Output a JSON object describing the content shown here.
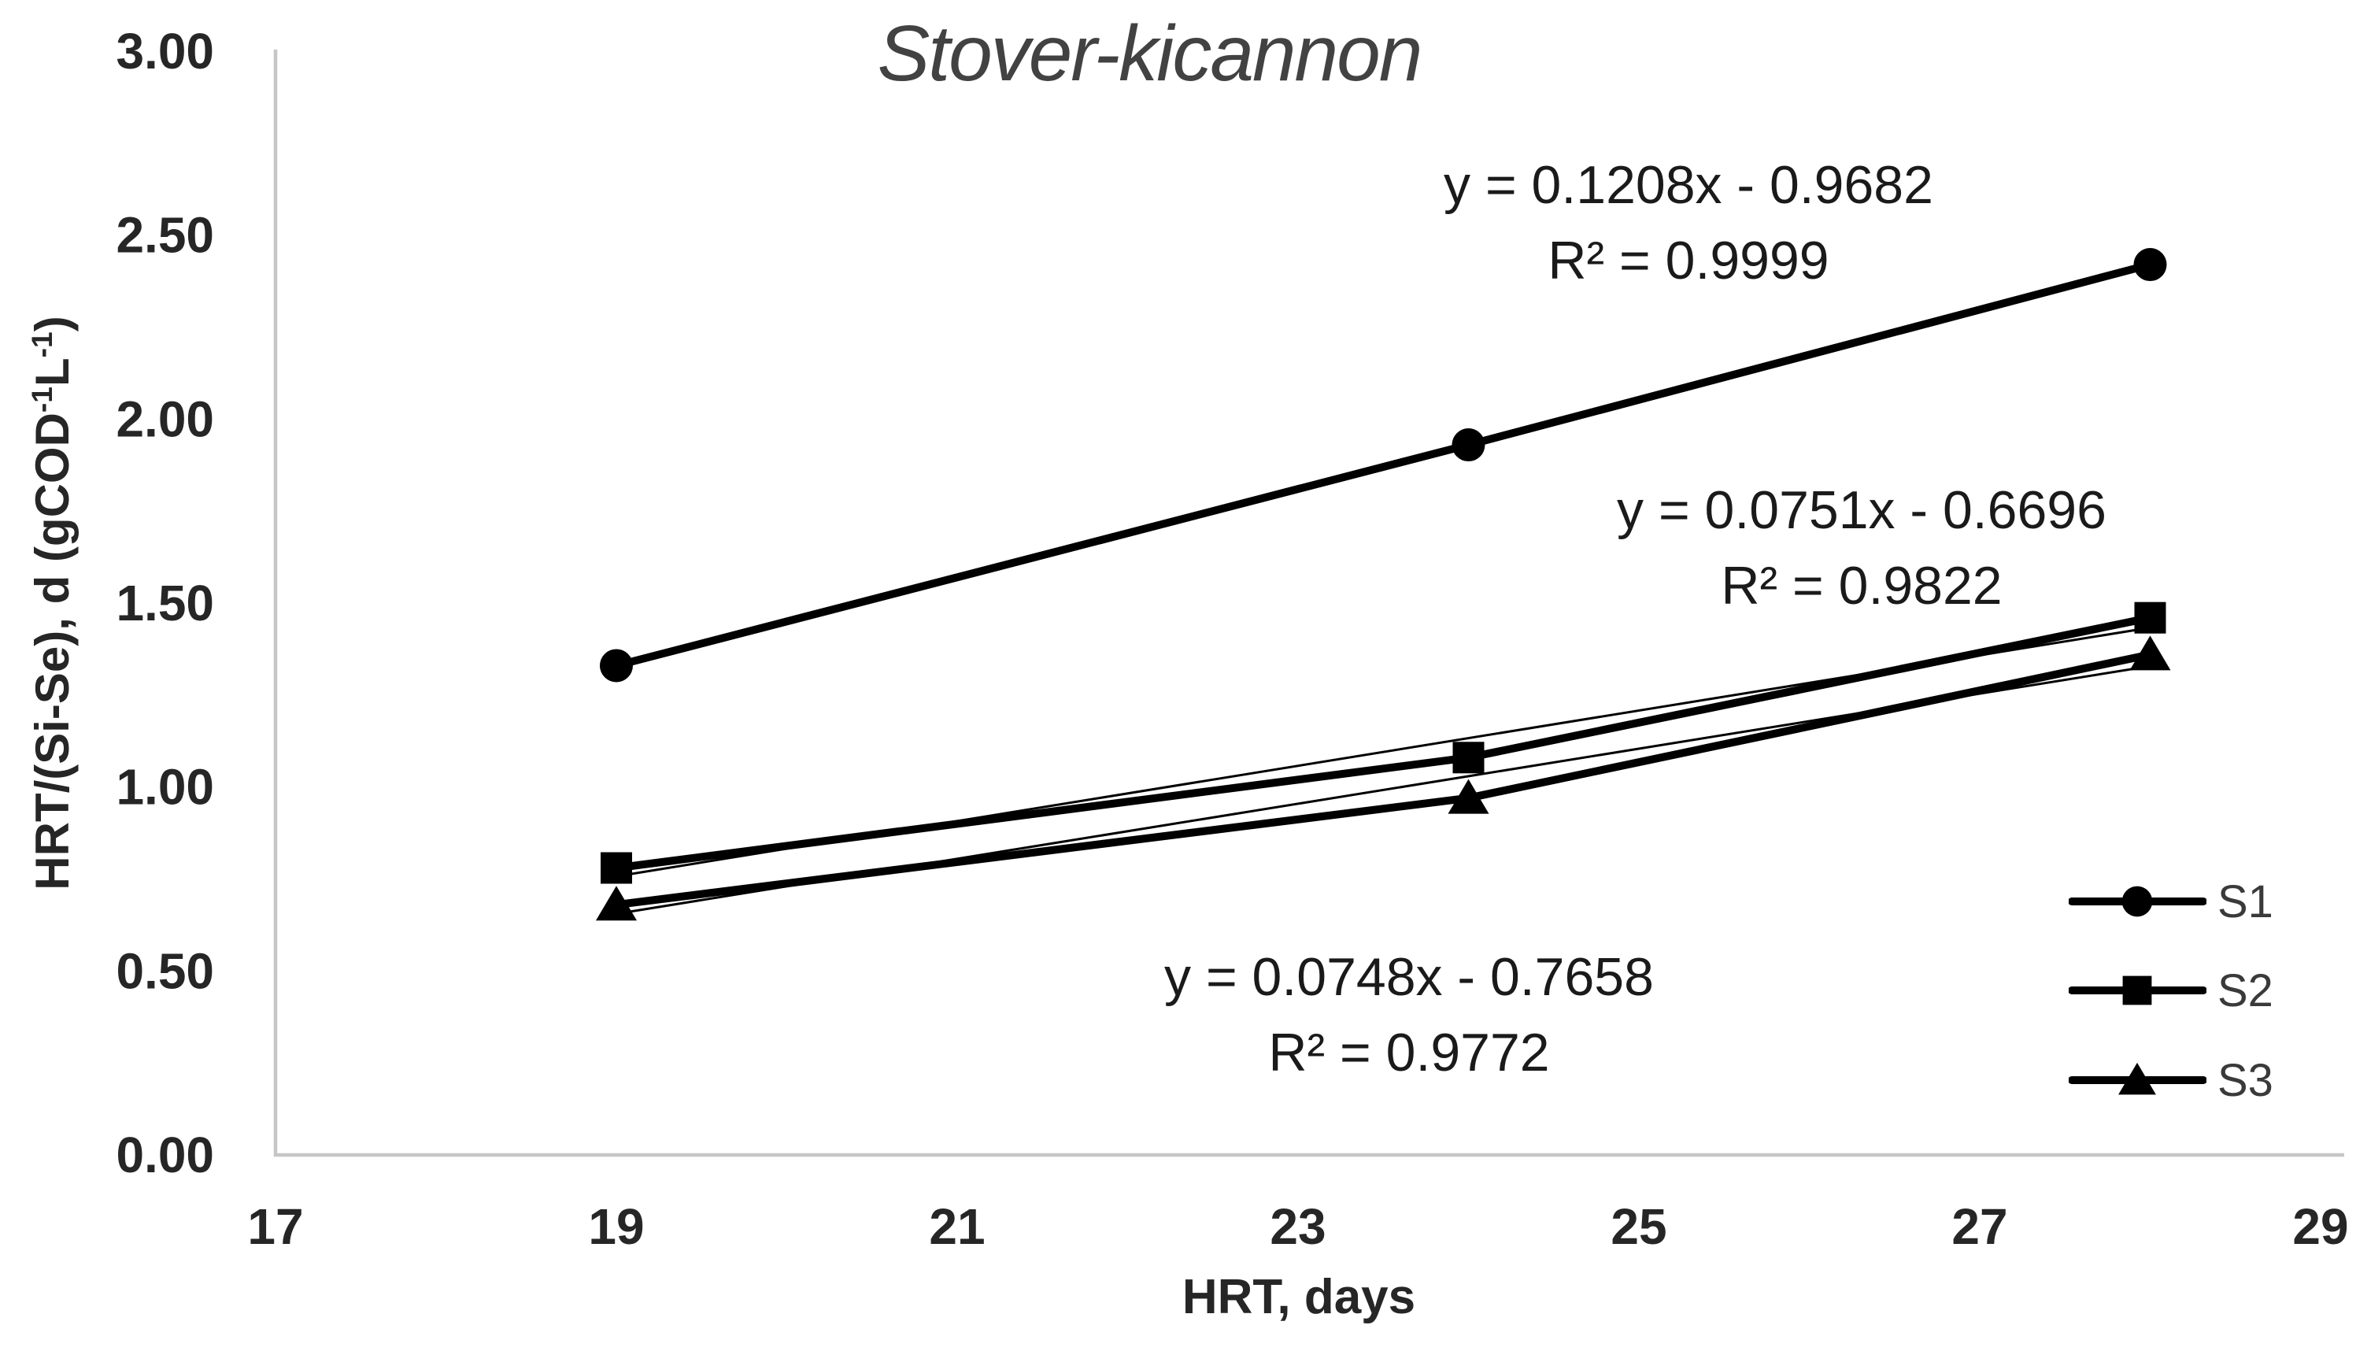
{
  "chart_data": {
    "type": "line",
    "title": "Stover-kicannon",
    "xlabel": "HRT, days",
    "ylabel": "HRT/(Si-Se), d (gCOD-1L-1)",
    "ylabel_parts": [
      "HRT/(Si-Se), d (gCOD",
      "-1",
      "L",
      "-1",
      ")"
    ],
    "x_ticks": [
      "17",
      "19",
      "21",
      "23",
      "25",
      "27",
      "29"
    ],
    "y_ticks": [
      "0.00",
      "0.50",
      "1.00",
      "1.50",
      "2.00",
      "2.50",
      "3.00"
    ],
    "xlim": [
      17,
      29
    ],
    "ylim": [
      0,
      3
    ],
    "grid": false,
    "legend_position": "lower-right",
    "x": [
      19,
      24,
      28
    ],
    "series": [
      {
        "name": "S1",
        "marker": "circle",
        "values": [
          1.33,
          1.93,
          2.42
        ],
        "trendline": {
          "slope": 0.1208,
          "intercept": -0.9682
        },
        "equation": "y = 0.1208x - 0.9682",
        "r2": "R² = 0.9999"
      },
      {
        "name": "S2",
        "marker": "square",
        "values": [
          0.78,
          1.08,
          1.46
        ],
        "trendline": {
          "slope": 0.0751,
          "intercept": -0.6696
        },
        "equation": "y = 0.0751x - 0.6696",
        "r2": "R² = 0.9822"
      },
      {
        "name": "S3",
        "marker": "triangle",
        "values": [
          0.68,
          0.97,
          1.36
        ],
        "trendline": {
          "slope": 0.0748,
          "intercept": -0.7658
        },
        "equation": "y = 0.0748x - 0.7658",
        "r2": "R² = 0.9772"
      }
    ],
    "colors": {
      "series": "#000000",
      "axis_line": "#c6c6c6",
      "tick_text": "#262626",
      "title_text": "#424242",
      "equation_text": "#1a1a1a",
      "legend_text": "#3a3a3a"
    }
  }
}
